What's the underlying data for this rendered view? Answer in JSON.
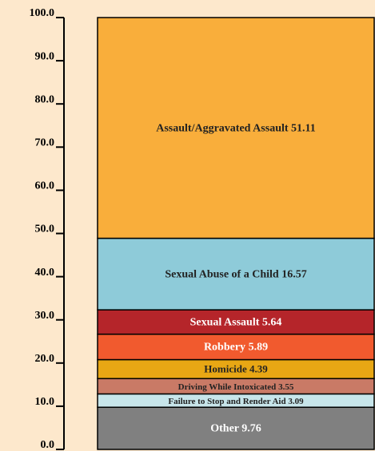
{
  "chart_data": {
    "type": "stacked_bar",
    "series": [
      {
        "name": "Other",
        "color": "#808080",
        "values": [
          9.76
        ]
      },
      {
        "name": "Failure to Stop and Render Aid",
        "color": "#c7e5ea",
        "values": [
          3.09
        ]
      },
      {
        "name": "Driving While Intoxicated",
        "color": "#c97a66",
        "values": [
          3.55
        ]
      },
      {
        "name": "Homicide",
        "color": "#e8a714",
        "values": [
          4.39
        ]
      },
      {
        "name": "Robbery",
        "color": "#f15a2e",
        "values": [
          5.89
        ]
      },
      {
        "name": "Sexual Assault",
        "color": "#b5252a",
        "values": [
          5.64
        ]
      },
      {
        "name": "Sexual Abuse of a Child",
        "color": "#8ecbd9",
        "values": [
          16.57
        ]
      },
      {
        "name": "Assault/Aggravated Assault",
        "color": "#f9ae3b",
        "values": [
          51.11
        ]
      }
    ],
    "ylim": [
      0,
      100
    ],
    "yticks": [
      {
        "value": 0,
        "label": "0.0"
      },
      {
        "value": 10,
        "label": "10.0"
      },
      {
        "value": 20,
        "label": "20.0"
      },
      {
        "value": 30,
        "label": "30.0"
      },
      {
        "value": 40,
        "label": "40.0"
      },
      {
        "value": 50,
        "label": "50.0"
      },
      {
        "value": 60,
        "label": "60.0"
      },
      {
        "value": 70,
        "label": "70.0"
      },
      {
        "value": 80,
        "label": "80.0"
      },
      {
        "value": 90,
        "label": "90.0"
      },
      {
        "value": 100,
        "label": "100.0"
      }
    ]
  }
}
